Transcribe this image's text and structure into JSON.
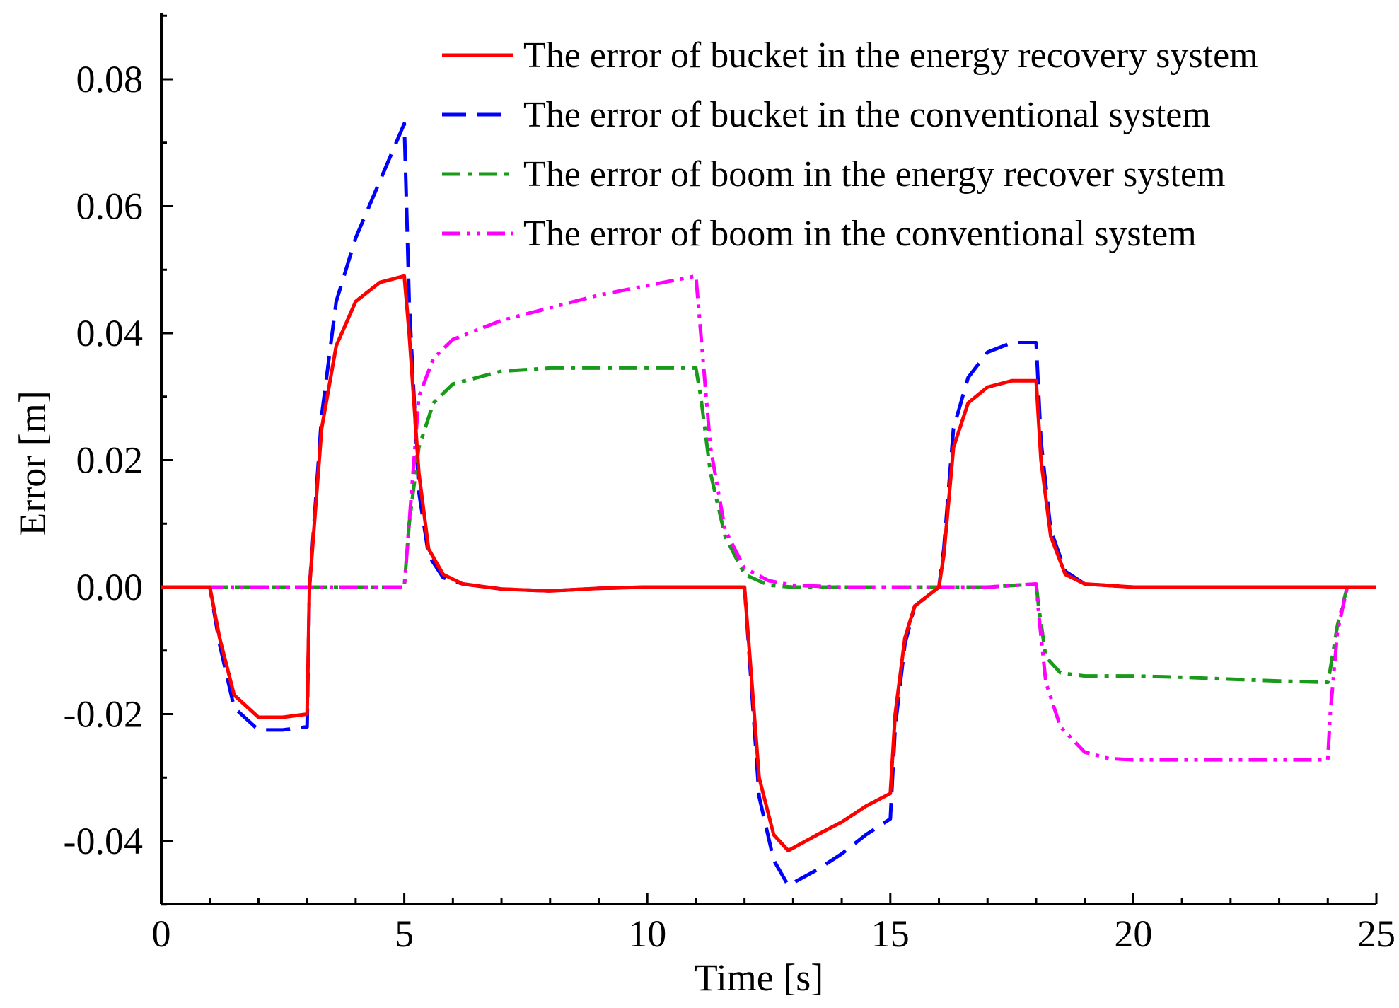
{
  "chart_data": {
    "type": "line",
    "title": "",
    "xlabel": "Time [s]",
    "ylabel": "Error [m]",
    "xlim": [
      0,
      25
    ],
    "ylim": [
      -0.05,
      0.09
    ],
    "xticks": [
      0,
      5,
      10,
      15,
      20,
      25
    ],
    "xtick_labels": [
      "0",
      "5",
      "10",
      "15",
      "20",
      "25"
    ],
    "yticks": [
      -0.04,
      -0.02,
      0.0,
      0.02,
      0.04,
      0.06,
      0.08
    ],
    "ytick_labels": [
      "-0.04",
      "-0.02",
      "0.00",
      "0.02",
      "0.04",
      "0.06",
      "0.08"
    ],
    "grid": false,
    "legend_position": "top-right",
    "series": [
      {
        "name": "The error of bucket in the energy recovery system",
        "color": "#ff0000",
        "dash": "solid",
        "x": [
          0,
          1,
          1.2,
          1.5,
          2,
          2.5,
          3,
          3.05,
          3.3,
          3.6,
          4,
          4.5,
          5,
          5.1,
          5.3,
          5.5,
          5.8,
          6.2,
          7,
          8,
          9,
          10,
          11,
          12,
          12.1,
          12.3,
          12.6,
          12.9,
          13.5,
          14,
          14.5,
          15,
          15.1,
          15.3,
          15.5,
          16,
          16.1,
          16.3,
          16.6,
          17,
          17.5,
          18,
          18.1,
          18.3,
          18.6,
          19,
          20,
          21,
          22,
          23,
          24,
          25
        ],
        "y": [
          0,
          0,
          -0.008,
          -0.017,
          -0.0205,
          -0.0205,
          -0.02,
          0.0,
          0.025,
          0.038,
          0.045,
          0.048,
          0.049,
          0.04,
          0.018,
          0.006,
          0.002,
          0.0005,
          -0.0003,
          -0.0006,
          -0.0002,
          0,
          0,
          0,
          -0.01,
          -0.03,
          -0.039,
          -0.0415,
          -0.039,
          -0.037,
          -0.0345,
          -0.0325,
          -0.02,
          -0.008,
          -0.003,
          0,
          0.005,
          0.022,
          0.029,
          0.0315,
          0.0325,
          0.0325,
          0.02,
          0.008,
          0.002,
          0.0005,
          0,
          0,
          0,
          0,
          0,
          0
        ]
      },
      {
        "name": "The error of bucket in the conventional system",
        "color": "#0000ff",
        "dash": "long-dash",
        "x": [
          0,
          1,
          1.2,
          1.5,
          2,
          2.5,
          3,
          3.05,
          3.3,
          3.6,
          4,
          4.5,
          5,
          5.1,
          5.3,
          5.5,
          5.8,
          6.2,
          7,
          8,
          9,
          10,
          11,
          12,
          12.1,
          12.3,
          12.6,
          12.9,
          13.5,
          14,
          14.5,
          15,
          15.1,
          15.3,
          15.5,
          16,
          16.1,
          16.3,
          16.6,
          17,
          17.5,
          18,
          18.1,
          18.3,
          18.6,
          19,
          20,
          21,
          22,
          23,
          24,
          25
        ],
        "y": [
          0,
          0,
          -0.009,
          -0.019,
          -0.0225,
          -0.0225,
          -0.022,
          0.0,
          0.027,
          0.045,
          0.055,
          0.064,
          0.073,
          0.045,
          0.015,
          0.005,
          0.0015,
          0.0005,
          -0.0003,
          -0.0006,
          -0.0002,
          0,
          0,
          0,
          -0.011,
          -0.033,
          -0.043,
          -0.047,
          -0.0445,
          -0.042,
          -0.039,
          -0.0365,
          -0.022,
          -0.009,
          -0.003,
          0,
          0.006,
          0.025,
          0.033,
          0.037,
          0.0385,
          0.0385,
          0.023,
          0.009,
          0.0025,
          0.0005,
          0,
          0,
          0,
          0,
          0,
          0
        ]
      },
      {
        "name": "The error of boom in the energy recover system",
        "color": "#1a9a1a",
        "dash": "dash-dot",
        "x": [
          0,
          5,
          5.1,
          5.3,
          5.6,
          6,
          7,
          8,
          9,
          10,
          11,
          11.1,
          11.3,
          11.6,
          12,
          12.5,
          13,
          14,
          15,
          16,
          17,
          18,
          18.05,
          18.2,
          18.5,
          19,
          20,
          21,
          22,
          23,
          24,
          24.05,
          24.2,
          24.4,
          25
        ],
        "y": [
          0,
          0,
          0.01,
          0.022,
          0.029,
          0.032,
          0.034,
          0.0345,
          0.0345,
          0.0345,
          0.0345,
          0.03,
          0.018,
          0.008,
          0.002,
          0.0003,
          0,
          0,
          0,
          0,
          0,
          0.0005,
          -0.003,
          -0.011,
          -0.0135,
          -0.014,
          -0.014,
          -0.0142,
          -0.0145,
          -0.0148,
          -0.015,
          -0.013,
          -0.006,
          0,
          0
        ]
      },
      {
        "name": "The error of boom in the conventional system",
        "color": "#ff00ff",
        "dash": "dash-dot-dot",
        "x": [
          0,
          5,
          5.1,
          5.3,
          5.6,
          6,
          7,
          8,
          9,
          10,
          11,
          11.1,
          11.3,
          11.6,
          12,
          12.5,
          13,
          14,
          15,
          16,
          17,
          18,
          18.05,
          18.2,
          18.5,
          19,
          19.5,
          20,
          21,
          22,
          23,
          24,
          24.05,
          24.2,
          24.4,
          25
        ],
        "y": [
          0,
          0,
          0.01,
          0.03,
          0.036,
          0.039,
          0.042,
          0.044,
          0.046,
          0.0475,
          0.049,
          0.04,
          0.022,
          0.009,
          0.003,
          0.001,
          0.0003,
          0,
          0,
          0,
          0,
          0.0005,
          -0.004,
          -0.015,
          -0.022,
          -0.026,
          -0.027,
          -0.0272,
          -0.0272,
          -0.0272,
          -0.0272,
          -0.0272,
          -0.02,
          -0.007,
          0,
          0
        ]
      }
    ]
  }
}
